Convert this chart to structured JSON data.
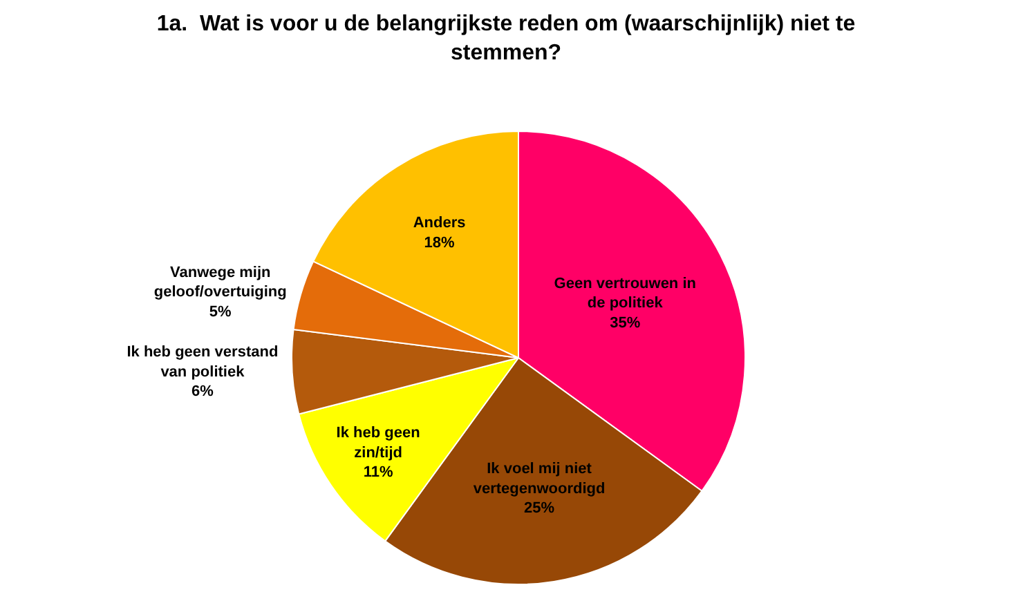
{
  "chart_data": {
    "type": "pie",
    "title": "1a.  Wat is voor u de belangrijkste reden om (waarschijnlijk) niet te\nstemmen?",
    "categories": [
      "Geen vertrouwen in\nde politiek",
      "Ik voel mij niet\nvertegenwoordigd",
      "Ik heb geen\nzin/tijd",
      "Ik heb geen verstand\nvan politiek",
      "Vanwege mijn\ngeloof/overtuiging",
      "Anders"
    ],
    "values": [
      35,
      25,
      11,
      6,
      5,
      18
    ],
    "colors": [
      "#ff0066",
      "#974806",
      "#ffff00",
      "#b45a0c",
      "#e46c0a",
      "#ffc000"
    ],
    "value_labels": [
      "35%",
      "25%",
      "11%",
      "6%",
      "5%",
      "18%"
    ],
    "legend": false
  }
}
